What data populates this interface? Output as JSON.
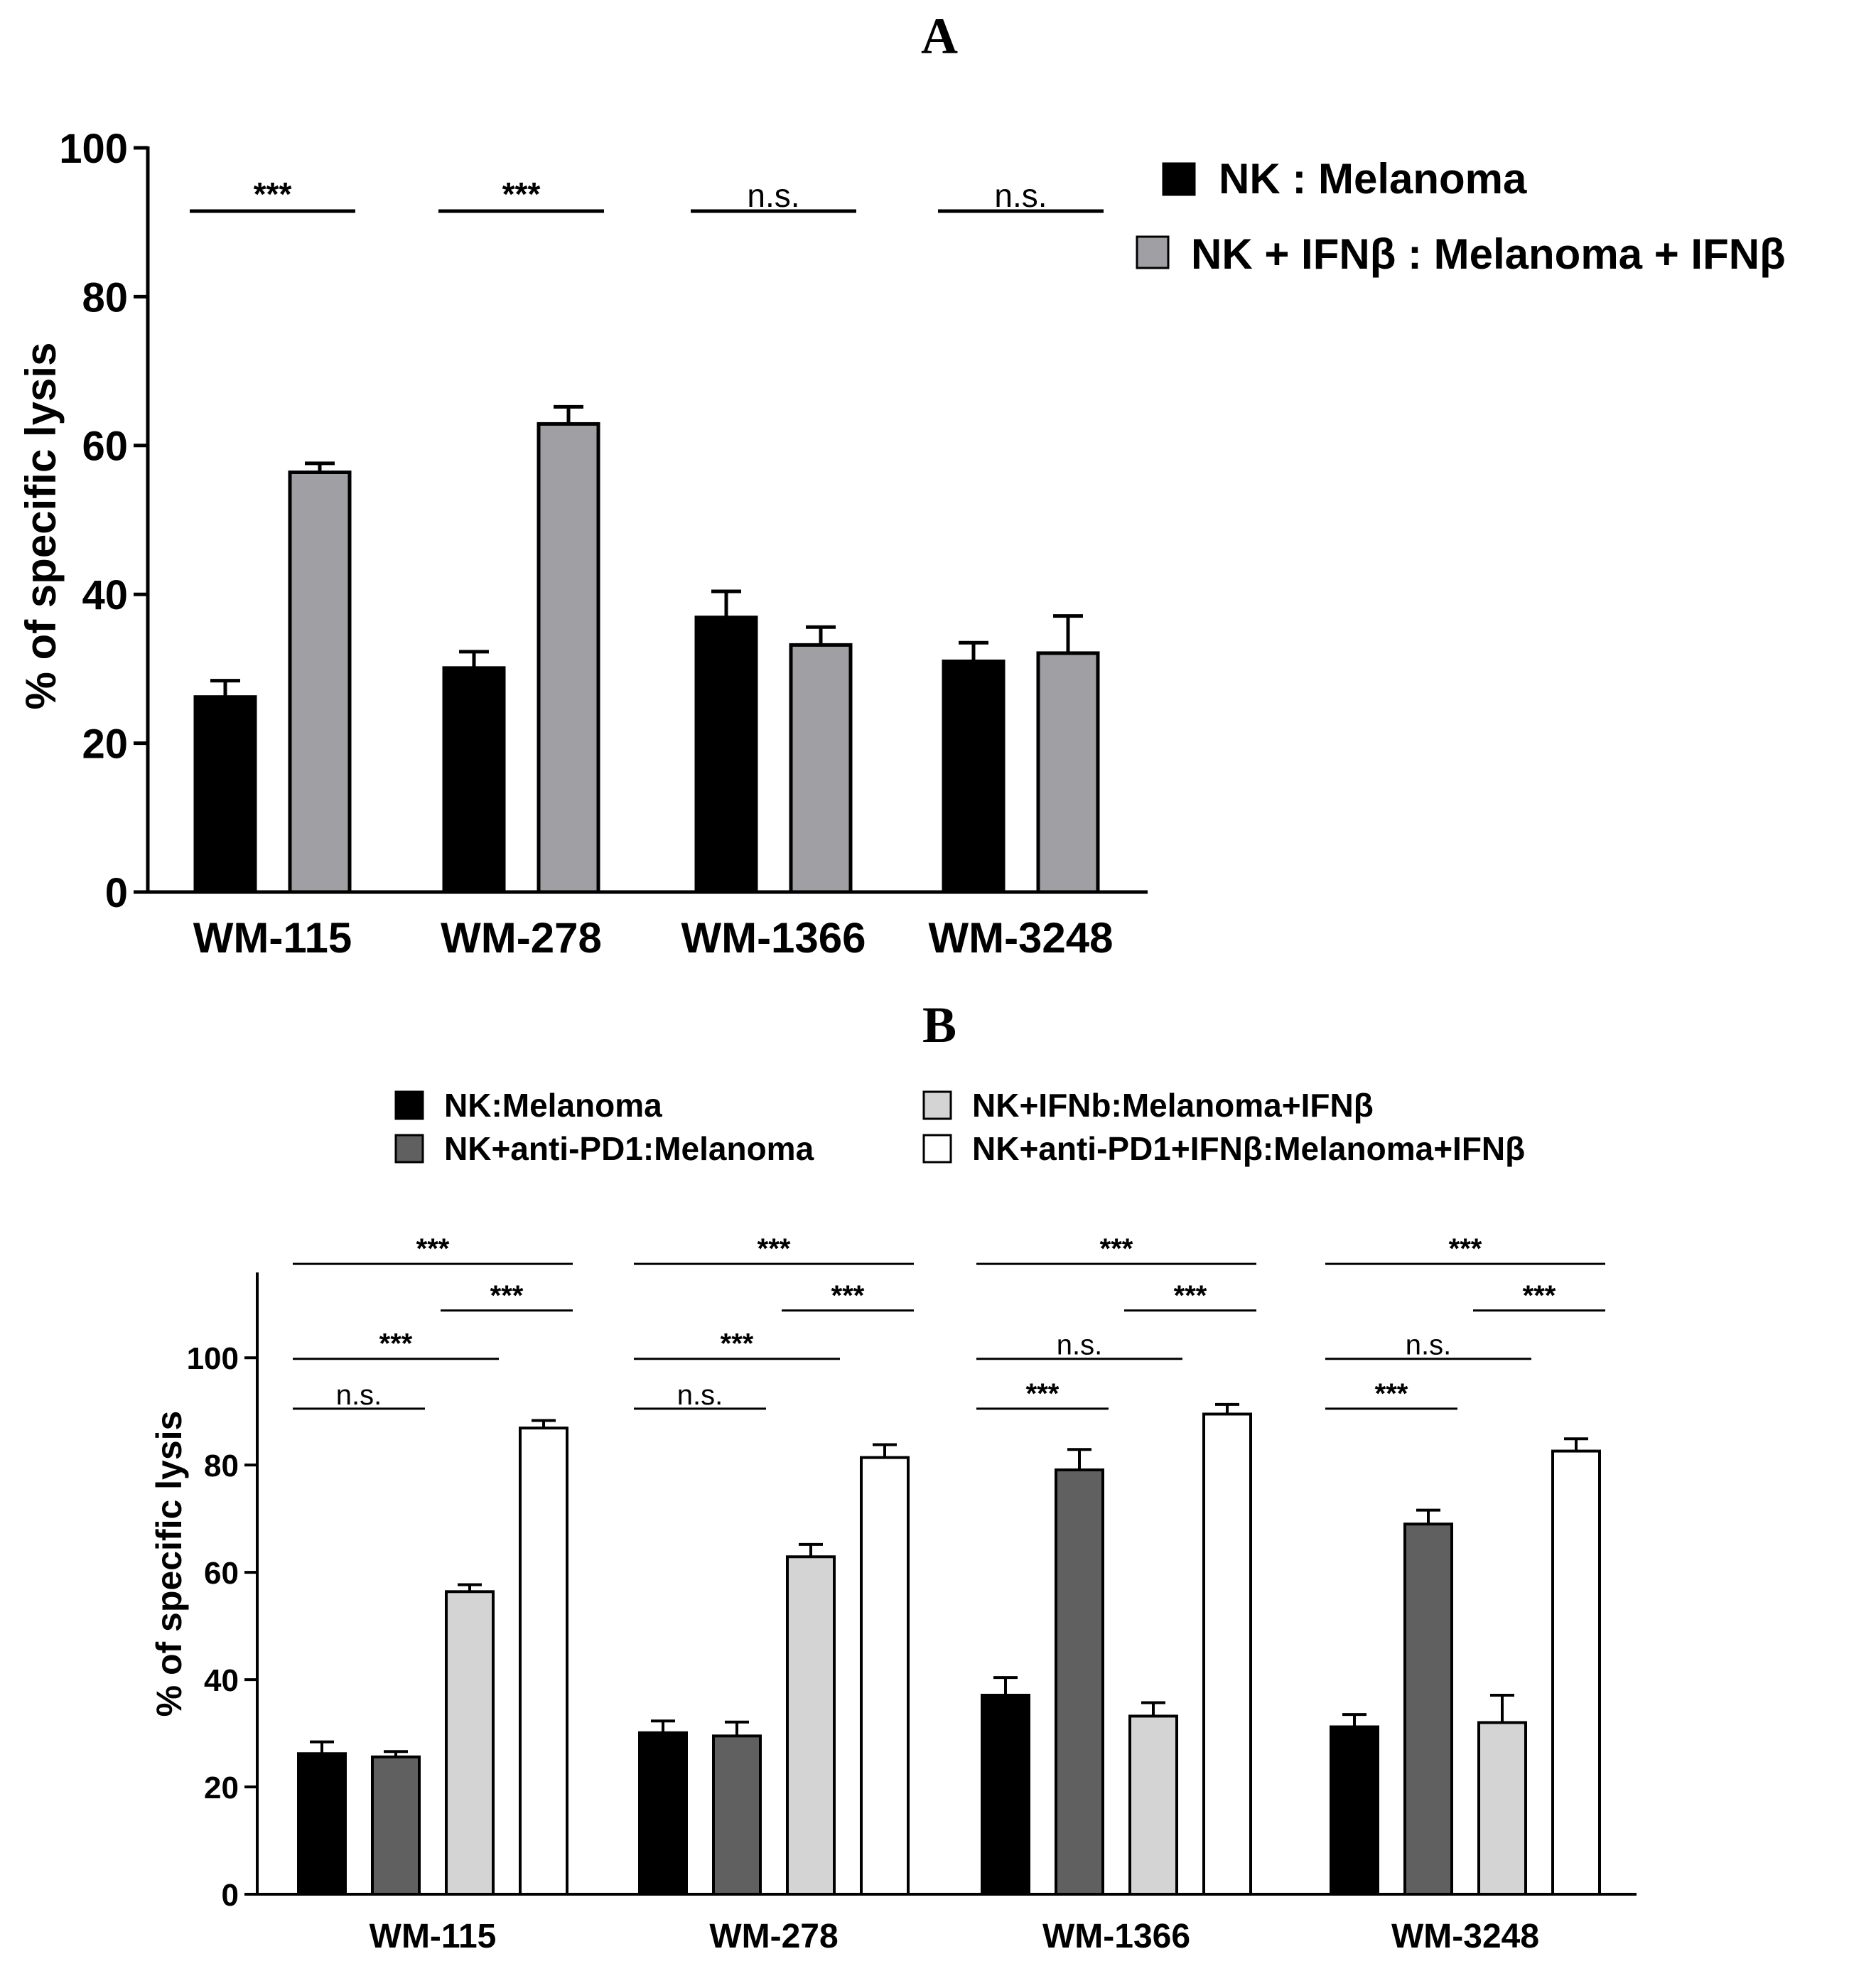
{
  "colors": {
    "axis": "#000000",
    "background": "#ffffff",
    "a_series": [
      "#000000",
      "#a0a0a4"
    ],
    "b_series": [
      "#000000",
      "#606060",
      "#d4d4d4",
      "#ffffff"
    ]
  },
  "chart_data": [
    {
      "panel_label": "A",
      "type": "bar",
      "title": "",
      "xlabel": "",
      "ylabel": "% of specific lysis",
      "ylim": [
        0,
        100
      ],
      "yticks": [
        0,
        20,
        40,
        60,
        80,
        100
      ],
      "grid": false,
      "legend_position": "top-right",
      "categories": [
        "WM-115",
        "WM-278",
        "WM-1366",
        "WM-3248"
      ],
      "series": [
        {
          "name": "NK : Melanoma",
          "values": [
            26.2,
            30.1,
            36.9,
            31.0
          ],
          "errors": [
            2.2,
            2.2,
            3.5,
            2.5
          ]
        },
        {
          "name": "NK + IFNβ : Melanoma + IFNβ",
          "values": [
            56.4,
            62.9,
            33.2,
            32.1
          ],
          "errors": [
            1.2,
            2.3,
            2.4,
            5.0
          ]
        }
      ],
      "significance": [
        {
          "group": 0,
          "from": 0,
          "to": 1,
          "y": 91.5,
          "label": "***"
        },
        {
          "group": 1,
          "from": 0,
          "to": 1,
          "y": 91.5,
          "label": "***"
        },
        {
          "group": 2,
          "from": 0,
          "to": 1,
          "y": 91.5,
          "label": "n.s."
        },
        {
          "group": 3,
          "from": 0,
          "to": 1,
          "y": 91.5,
          "label": "n.s."
        }
      ]
    },
    {
      "panel_label": "B",
      "type": "bar",
      "title": "",
      "xlabel": "",
      "ylabel": "% of specific lysis",
      "ylim": [
        0,
        115
      ],
      "yticks": [
        0,
        20,
        40,
        60,
        80,
        100
      ],
      "grid": false,
      "legend_position": "top",
      "categories": [
        "WM-115",
        "WM-278",
        "WM-1366",
        "WM-3248"
      ],
      "series": [
        {
          "name": "NK:Melanoma",
          "values": [
            26.2,
            30.1,
            37.1,
            31.2
          ],
          "errors": [
            2.2,
            2.2,
            3.3,
            2.3
          ]
        },
        {
          "name": "NK+anti-PD1:Melanoma",
          "values": [
            25.6,
            29.5,
            79.1,
            69.0
          ],
          "errors": [
            1.0,
            2.6,
            3.8,
            2.6
          ]
        },
        {
          "name": "NK+IFNb:Melanoma+IFNβ",
          "values": [
            56.4,
            62.9,
            33.2,
            32.0
          ],
          "errors": [
            1.3,
            2.3,
            2.5,
            5.1
          ]
        },
        {
          "name": "NK+anti-PD1+IFNβ:Melanoma+IFNβ",
          "values": [
            86.9,
            81.4,
            89.5,
            82.6
          ],
          "errors": [
            1.4,
            2.4,
            1.8,
            2.3
          ]
        }
      ],
      "legend_layout": [
        [
          0,
          2
        ],
        [
          1,
          3
        ]
      ],
      "significance": [
        {
          "group": 0,
          "from": 0,
          "to": 3,
          "y": 117.5,
          "label": "***"
        },
        {
          "group": 0,
          "from": 2,
          "to": 3,
          "y": 108.8,
          "label": "***"
        },
        {
          "group": 0,
          "from": 0,
          "to": 2,
          "y": 99.8,
          "label": "***"
        },
        {
          "group": 0,
          "from": 0,
          "to": 1,
          "y": 90.5,
          "label": "n.s."
        },
        {
          "group": 1,
          "from": 0,
          "to": 3,
          "y": 117.5,
          "label": "***"
        },
        {
          "group": 1,
          "from": 2,
          "to": 3,
          "y": 108.8,
          "label": "***"
        },
        {
          "group": 1,
          "from": 0,
          "to": 2,
          "y": 99.8,
          "label": "***"
        },
        {
          "group": 1,
          "from": 0,
          "to": 1,
          "y": 90.5,
          "label": "n.s."
        },
        {
          "group": 2,
          "from": 0,
          "to": 3,
          "y": 117.5,
          "label": "***"
        },
        {
          "group": 2,
          "from": 2,
          "to": 3,
          "y": 108.8,
          "label": "***"
        },
        {
          "group": 2,
          "from": 0,
          "to": 2,
          "y": 99.8,
          "label": "n.s."
        },
        {
          "group": 2,
          "from": 0,
          "to": 1,
          "y": 90.5,
          "label": "***"
        },
        {
          "group": 3,
          "from": 0,
          "to": 3,
          "y": 117.5,
          "label": "***"
        },
        {
          "group": 3,
          "from": 2,
          "to": 3,
          "y": 108.8,
          "label": "***"
        },
        {
          "group": 3,
          "from": 0,
          "to": 2,
          "y": 99.8,
          "label": "n.s."
        },
        {
          "group": 3,
          "from": 0,
          "to": 1,
          "y": 90.5,
          "label": "***"
        }
      ]
    }
  ]
}
